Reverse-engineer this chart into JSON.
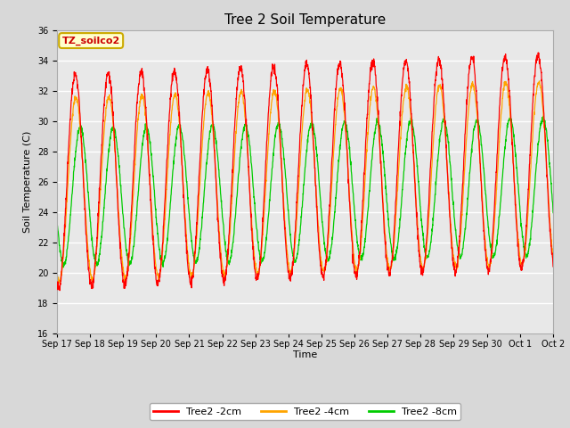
{
  "title": "Tree 2 Soil Temperature",
  "ylabel": "Soil Temperature (C)",
  "xlabel": "Time",
  "annotation_text": "TZ_soilco2",
  "legend_labels": [
    "Tree2 -2cm",
    "Tree2 -4cm",
    "Tree2 -8cm"
  ],
  "legend_colors": [
    "#ff0000",
    "#ffa500",
    "#00cc00"
  ],
  "ylim": [
    16,
    36
  ],
  "yticks": [
    16,
    18,
    20,
    22,
    24,
    26,
    28,
    30,
    32,
    34,
    36
  ],
  "background_color": "#e8e8e8",
  "grid_color": "#ffffff",
  "title_fontsize": 11,
  "axis_label_fontsize": 8,
  "tick_fontsize": 7,
  "xtick_labels": [
    "Sep 17",
    "Sep 18",
    "Sep 19",
    "Sep 20",
    "Sep 21",
    "Sep 22",
    "Sep 23",
    "Sep 24",
    "Sep 25",
    "Sep 26",
    "Sep 27",
    "Sep 28",
    "Sep 29",
    "Sep 30",
    "Oct 1",
    "Oct 2"
  ],
  "num_days": 16,
  "seed": 42
}
